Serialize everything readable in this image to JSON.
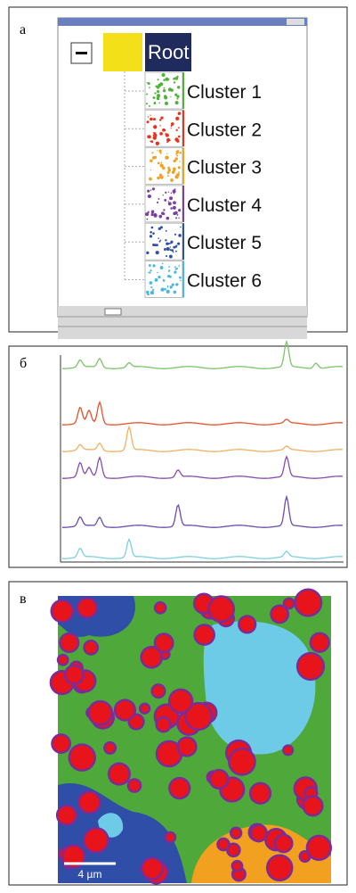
{
  "panels": [
    {
      "label": "а",
      "root": "Root",
      "clusters": [
        "Cluster 1",
        "Cluster 2",
        "Cluster 3",
        "Cluster 4",
        "Cluster 5",
        "Cluster 6"
      ]
    },
    {
      "label": "б"
    },
    {
      "label": "в",
      "scale_bar": "4 µm"
    }
  ]
}
